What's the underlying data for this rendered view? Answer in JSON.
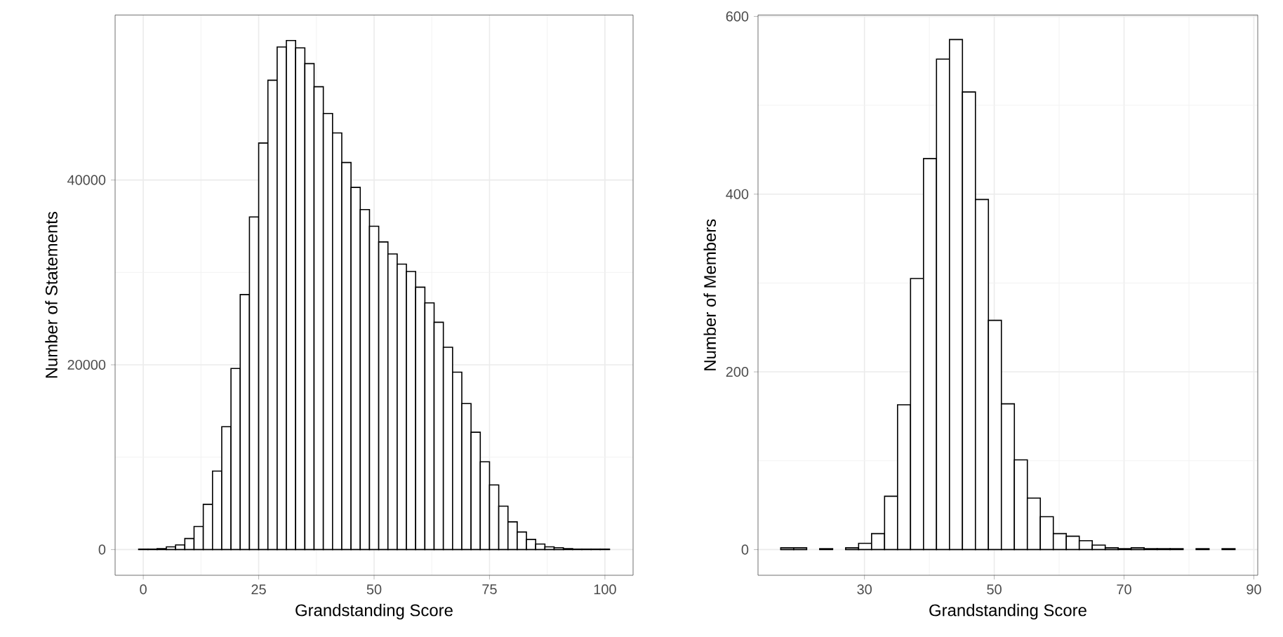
{
  "chart_data": [
    {
      "type": "histogram",
      "xlabel": "Grandstanding Score",
      "ylabel": "Number of Statements",
      "color": "#ffffff",
      "bins": [
        -1,
        1,
        3,
        5,
        7,
        9,
        11,
        13,
        15,
        17,
        19,
        21,
        23,
        25,
        27,
        29,
        31,
        33,
        35,
        37,
        39,
        41,
        43,
        45,
        47,
        49,
        51,
        53,
        55,
        57,
        59,
        61,
        63,
        65,
        67,
        69,
        71,
        73,
        75,
        77,
        79,
        81,
        83,
        85,
        87,
        89,
        91,
        93,
        95,
        97,
        99,
        101
      ],
      "values": [
        50,
        50,
        100,
        300,
        500,
        1200,
        2500,
        4900,
        8500,
        13300,
        19600,
        27600,
        36000,
        44000,
        50800,
        54400,
        55100,
        54300,
        52600,
        50100,
        47200,
        45100,
        41900,
        39200,
        36800,
        35000,
        33300,
        32000,
        30900,
        30100,
        28400,
        26700,
        24600,
        21900,
        19200,
        15800,
        12700,
        9500,
        7000,
        4700,
        3000,
        1900,
        1100,
        600,
        300,
        200,
        100,
        50,
        50,
        50,
        50
      ],
      "xlim": [
        -6.1,
        106.1
      ],
      "ylim": [
        -2780,
        57860
      ],
      "xticks": [
        0,
        25,
        50,
        75,
        100
      ],
      "yticks": [
        0,
        20000,
        40000
      ],
      "grid": true
    },
    {
      "type": "histogram",
      "xlabel": "Grandstanding Score",
      "ylabel": "Number of Members",
      "color": "#ffffff",
      "bins": [
        17.1,
        19.1,
        21.1,
        23.1,
        25.1,
        27.1,
        29.1,
        31.1,
        33.1,
        35.1,
        37.1,
        39.1,
        41.1,
        43.1,
        45.1,
        47.1,
        49.1,
        51.1,
        53.1,
        55.1,
        57.1,
        59.1,
        61.1,
        63.1,
        65.1,
        67.1,
        69.1,
        71.1,
        73.1,
        75.1,
        77.1,
        79.1,
        81.1,
        83.1,
        85.1,
        87.1
      ],
      "values": [
        2,
        2,
        0,
        1,
        0,
        2,
        7,
        18,
        60,
        163,
        305,
        440,
        552,
        574,
        515,
        394,
        258,
        164,
        101,
        58,
        37,
        18,
        15,
        10,
        5,
        2,
        1,
        2,
        1,
        1,
        1,
        0,
        1,
        0,
        1
      ],
      "xlim": [
        13.6,
        90.6
      ],
      "ylim": [
        -28.9,
        601.6
      ],
      "xticks": [
        30,
        50,
        70,
        90
      ],
      "yticks": [
        0,
        200,
        400,
        600
      ],
      "grid": true
    }
  ]
}
